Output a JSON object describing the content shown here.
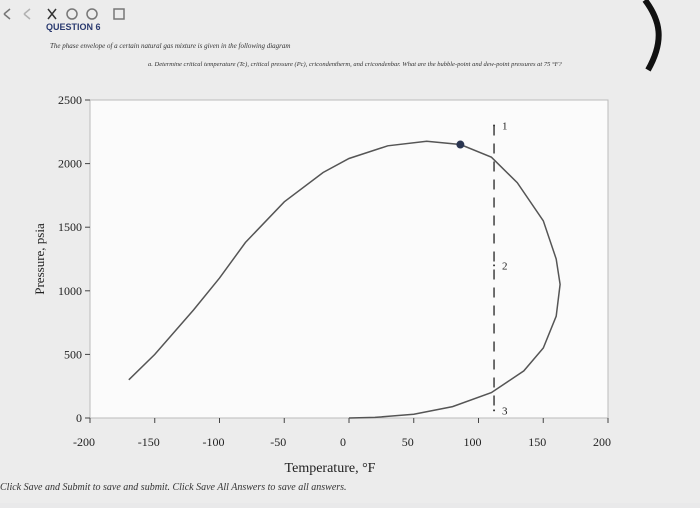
{
  "header": {
    "question": "QUESTION 6",
    "prompt": "The phase envelope of a certain natural gas mixture is given in the following diagram",
    "task": "a. Determine critical temperature (Tc), critical pressure (Pc), cricondentherm, and cricondenbar. What are the bubble-point and dew-point pressures at 75 °F?"
  },
  "chart_data": {
    "type": "line",
    "x_label": "Temperature, °F",
    "y_label": "Pressure, psia",
    "x": [
      -170,
      -150,
      -120,
      -100,
      -80,
      -50,
      -20,
      0,
      30,
      60,
      86,
      110,
      130,
      150,
      160,
      163,
      160,
      150,
      135,
      110,
      80,
      50,
      20,
      0
    ],
    "series": [
      {
        "color": "#555555",
        "values": [
          300,
          500,
          850,
          1100,
          1380,
          1700,
          1930,
          2040,
          2140,
          2175,
          2150,
          2050,
          1850,
          1550,
          1250,
          1050,
          800,
          550,
          370,
          200,
          90,
          30,
          5,
          0
        ]
      }
    ],
    "critical_point": {
      "x": 86,
      "y": 2150,
      "color": "#2a3550"
    },
    "path_points": [
      {
        "label": "1",
        "x": 112,
        "y": 2300
      },
      {
        "label": "2",
        "x": 112,
        "y": 1200
      },
      {
        "label": "3",
        "x": 112,
        "y": 60
      }
    ],
    "xlim": [
      -200,
      200
    ],
    "xticks": [
      -200,
      -150,
      -100,
      -50,
      0,
      50,
      100,
      150,
      200
    ],
    "ylim": [
      0,
      2500
    ],
    "yticks": [
      0,
      500,
      1000,
      1500,
      2000,
      2500
    ]
  },
  "footer": "Click Save and Submit to save and submit. Click Save All Answers to save all answers."
}
